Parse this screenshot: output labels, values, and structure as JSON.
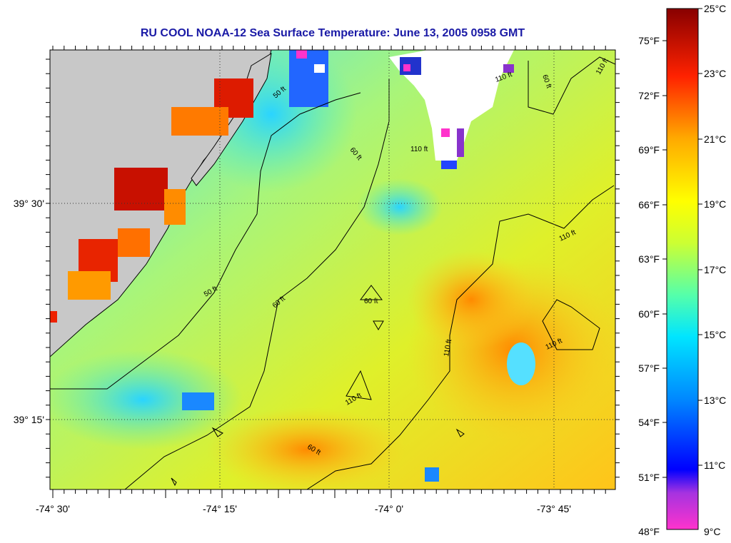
{
  "title": "RU COOL  NOAA-12  Sea Surface Temperature:  June 13, 2005 0958 GMT",
  "map": {
    "lon_labels": [
      "-74° 30'",
      "-74° 15'",
      "-74° 0'",
      "-73° 45'"
    ],
    "lat_labels": [
      "39° 30'",
      "39° 15'"
    ],
    "contour_labels": [
      "50 ft",
      "60 ft",
      "110 ft"
    ],
    "land_color": "#c8c8c8",
    "cloud_color": "#ffffff"
  },
  "colorbar": {
    "fahrenheit_labels": [
      "75°F",
      "72°F",
      "69°F",
      "66°F",
      "63°F",
      "60°F",
      "57°F",
      "54°F",
      "51°F",
      "48°F"
    ],
    "celsius_labels": [
      "25°C",
      "23°C",
      "21°C",
      "19°C",
      "17°C",
      "15°C",
      "13°C",
      "11°C",
      "9°C"
    ],
    "colors": [
      "#ff33cc",
      "#8833cc",
      "#0000ff",
      "#0088ff",
      "#00e5ff",
      "#55ffaa",
      "#ccff33",
      "#ffff00",
      "#ffaa00",
      "#ff3300",
      "#880000"
    ]
  }
}
